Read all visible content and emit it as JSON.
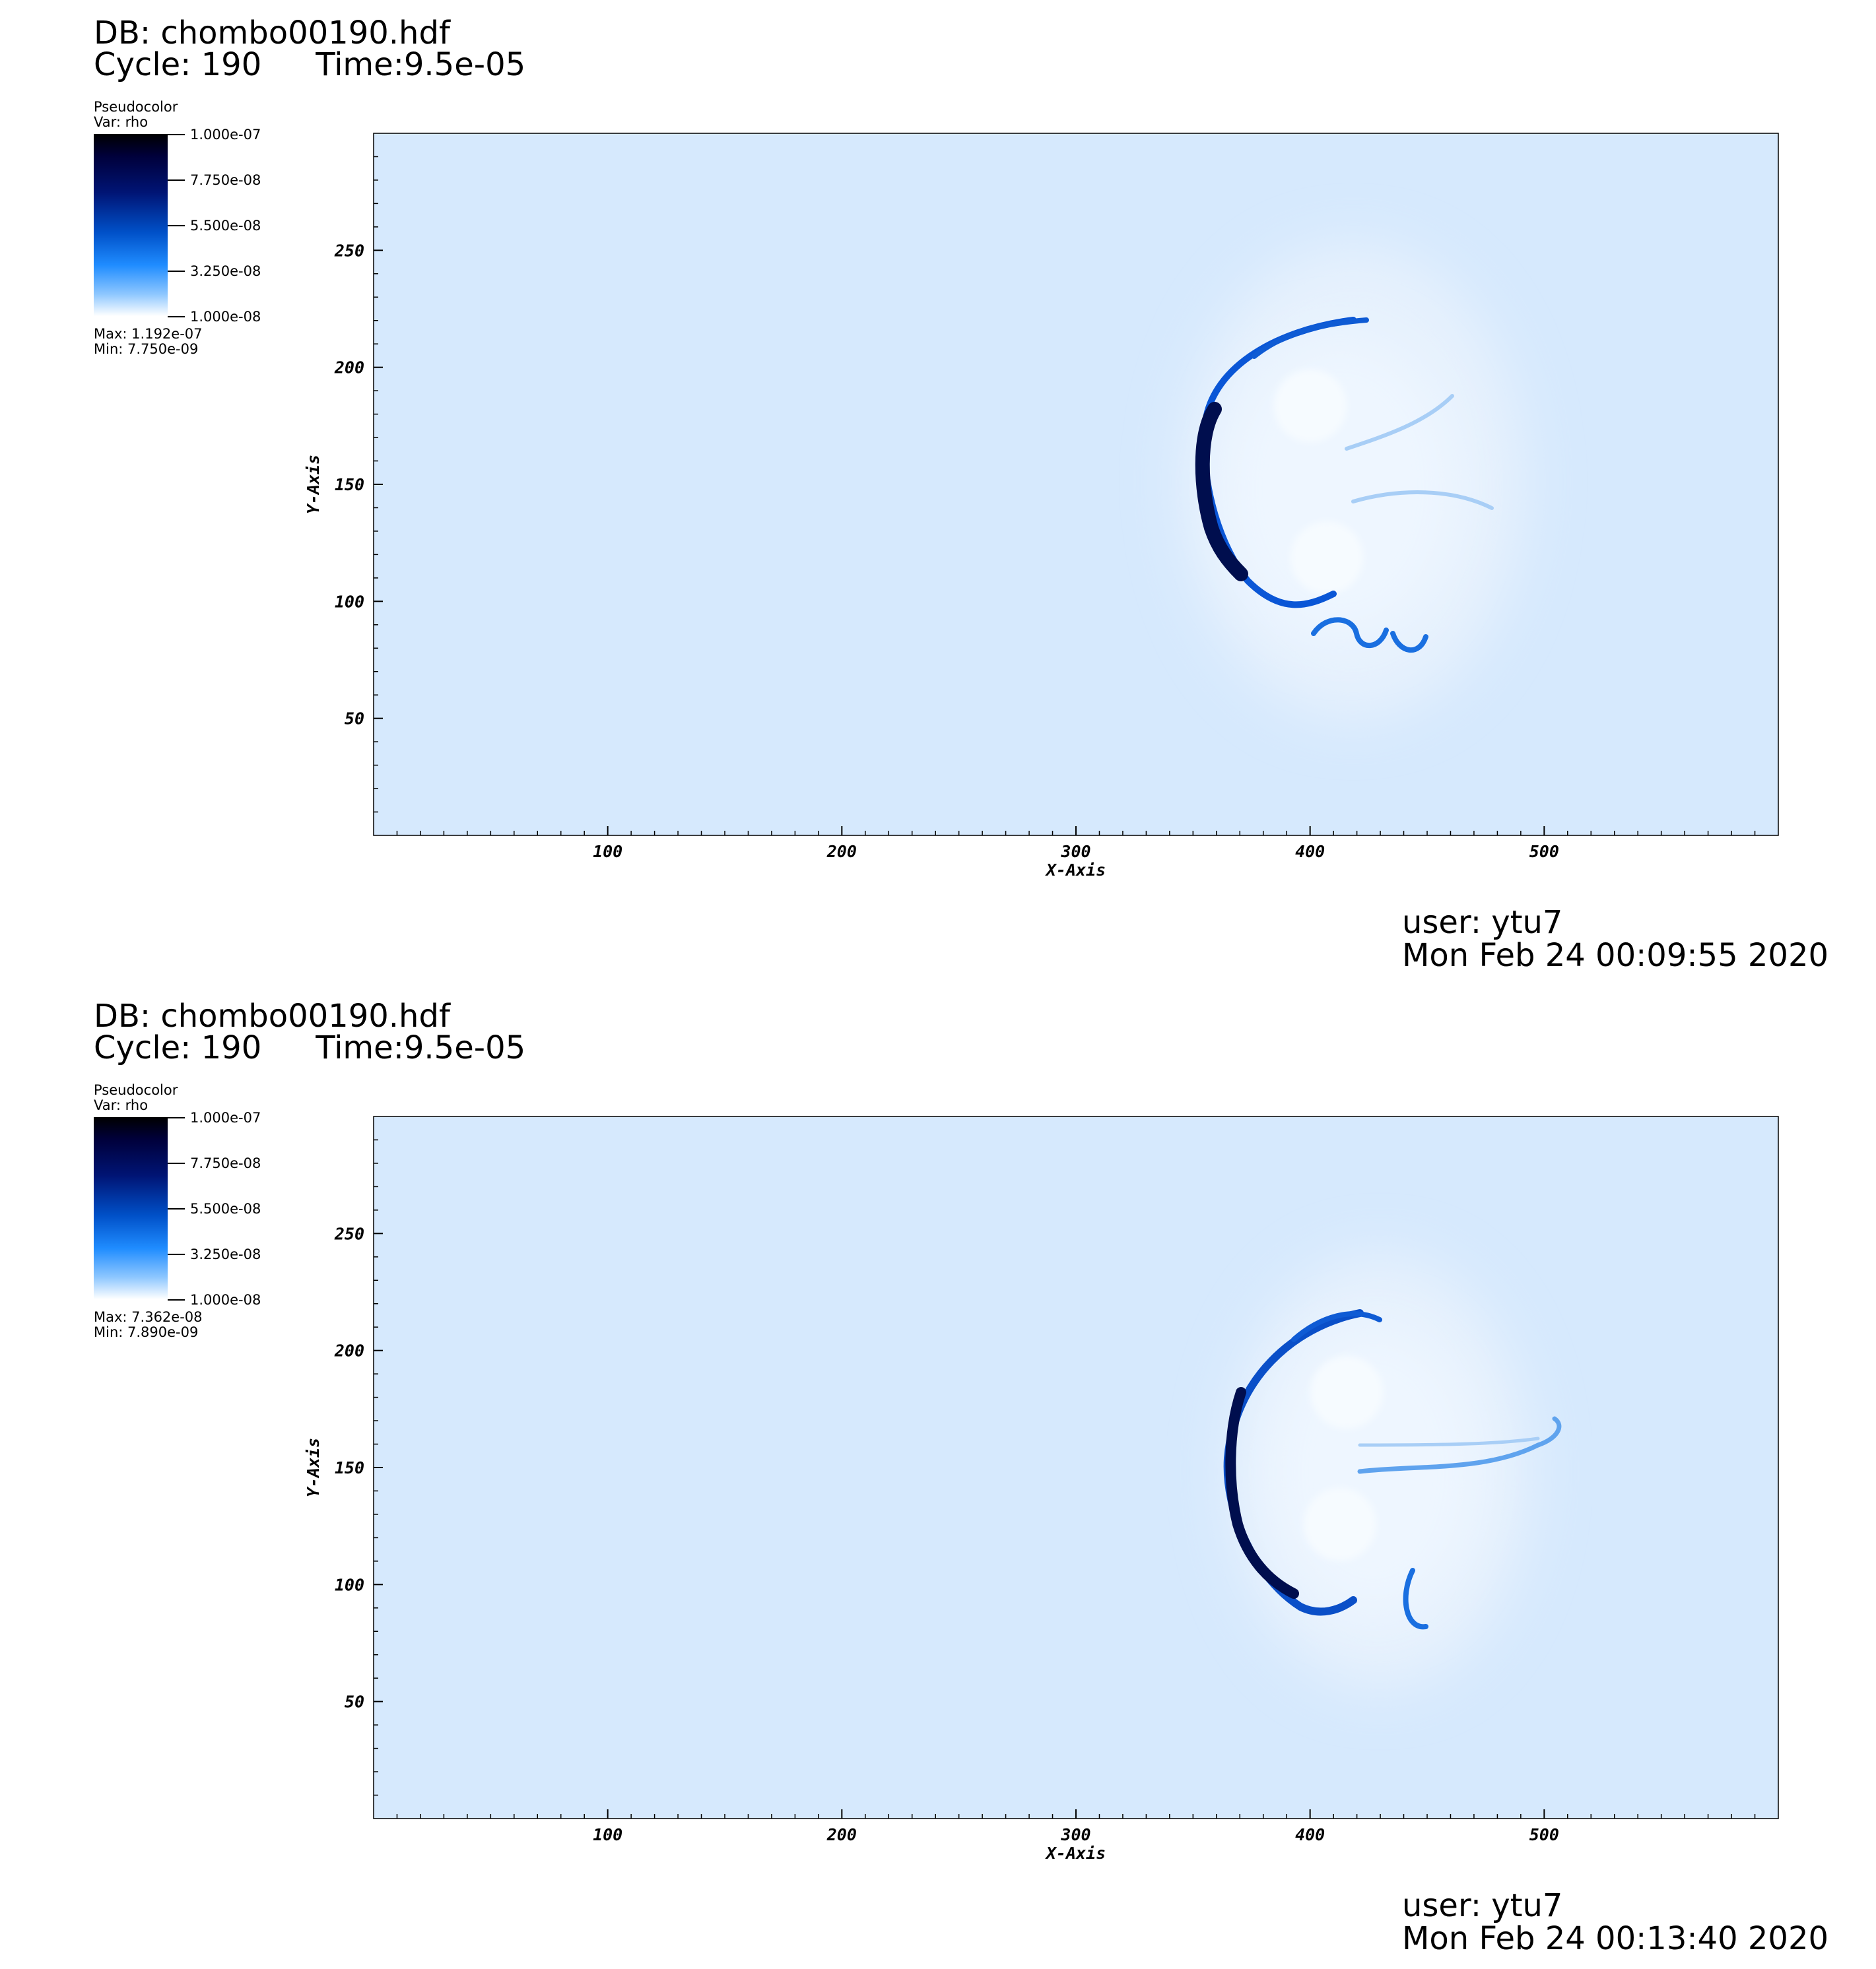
{
  "panels": [
    {
      "db": "DB: chombo00190.hdf",
      "cycle": "Cycle: 190",
      "time": "Time:9.5e-05",
      "legend": {
        "title": "Pseudocolor",
        "var": "Var: rho",
        "ticks": [
          "1.000e-07",
          "7.750e-08",
          "5.500e-08",
          "3.250e-08",
          "1.000e-08"
        ],
        "max": "Max:  1.192e-07",
        "min": "Min:  7.750e-09"
      },
      "user": "user: ytu7",
      "date": "Mon Feb 24 00:09:55 2020"
    },
    {
      "db": "DB: chombo00190.hdf",
      "cycle": "Cycle: 190",
      "time": "Time:9.5e-05",
      "legend": {
        "title": "Pseudocolor",
        "var": "Var: rho",
        "ticks": [
          "1.000e-07",
          "7.750e-08",
          "5.500e-08",
          "3.250e-08",
          "1.000e-08"
        ],
        "max": "Max:  7.362e-08",
        "min": "Min:  7.890e-09"
      },
      "user": "user: ytu7",
      "date": "Mon Feb 24 00:13:40 2020"
    }
  ],
  "chart_data": [
    {
      "type": "heatmap",
      "variable": "rho",
      "xlabel": "X-Axis",
      "ylabel": "Y-Axis",
      "xlim": [
        0,
        600
      ],
      "ylim": [
        0,
        300
      ],
      "xticks": [
        100,
        200,
        300,
        400,
        500
      ],
      "yticks": [
        50,
        100,
        150,
        200,
        250
      ],
      "colorbar_range": [
        1e-08,
        1e-07
      ],
      "background_color": "#d6e9fd"
    },
    {
      "type": "heatmap",
      "variable": "rho",
      "xlabel": "X-Axis",
      "ylabel": "Y-Axis",
      "xlim": [
        0,
        600
      ],
      "ylim": [
        0,
        300
      ],
      "xticks": [
        100,
        200,
        300,
        400,
        500
      ],
      "yticks": [
        50,
        100,
        150,
        200,
        250
      ],
      "colorbar_range": [
        1e-08,
        1e-07
      ],
      "background_color": "#d6e9fd"
    }
  ]
}
